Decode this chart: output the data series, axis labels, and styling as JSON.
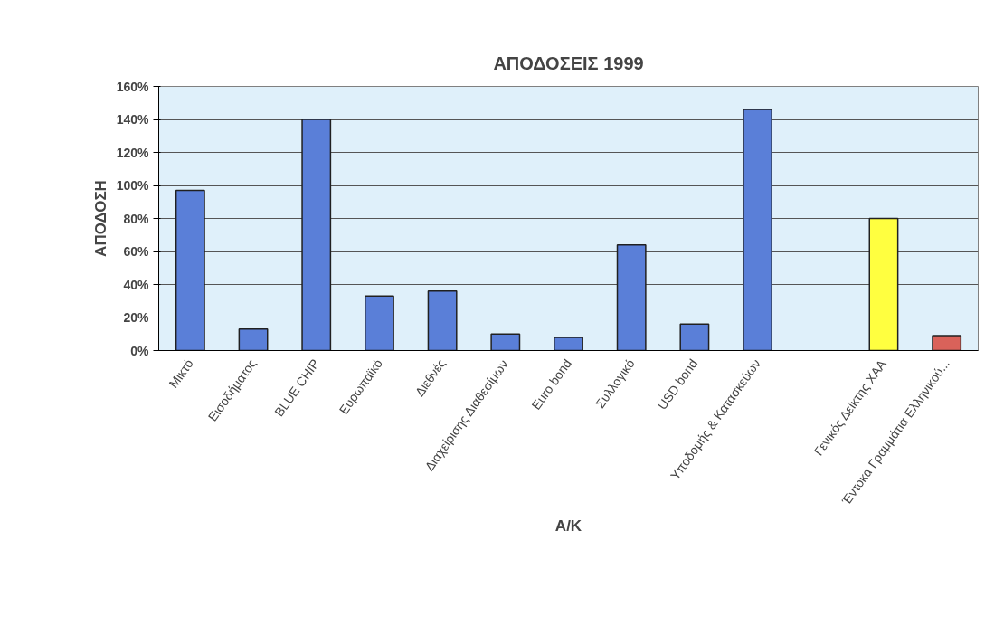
{
  "chart_data": {
    "type": "bar",
    "title": "ΑΠΟΔΟΣΕΙΣ 1999",
    "xlabel": "Α/Κ",
    "ylabel": "ΑΠΟΔΟΣΗ",
    "categories": [
      "Μικτό",
      "Εισοδήματος",
      "BLUE CHIP",
      "Ευρωπαϊκό",
      "Διεθνές",
      "Διαχείρισης Διαθεσίμων",
      "Euro bond",
      "Συλλογικό",
      "USD bond",
      "Υποδομής & Κατασκεύων",
      null,
      "Γενικός Δείκτης ΧΑΑ",
      "Έντοκα Γραμμάτια Ελληνικού..."
    ],
    "values": [
      97,
      13,
      140,
      33,
      36,
      10,
      8,
      64,
      16,
      146,
      null,
      80,
      9
    ],
    "colors": [
      "#5a7fd8",
      "#5a7fd8",
      "#5a7fd8",
      "#5a7fd8",
      "#5a7fd8",
      "#5a7fd8",
      "#5a7fd8",
      "#5a7fd8",
      "#5a7fd8",
      "#5a7fd8",
      "#5a7fd8",
      "#ffff40",
      "#d9625a"
    ],
    "ylim": [
      0,
      160
    ],
    "yticks": [
      {
        "value": 0,
        "label": "0%"
      },
      {
        "value": 20,
        "label": "20%"
      },
      {
        "value": 40,
        "label": "40%"
      },
      {
        "value": 60,
        "label": "60%"
      },
      {
        "value": 80,
        "label": "80%"
      },
      {
        "value": 100,
        "label": "100%"
      },
      {
        "value": 120,
        "label": "120%"
      },
      {
        "value": 140,
        "label": "140%"
      },
      {
        "value": 160,
        "label": "160%"
      }
    ],
    "grid": "y"
  }
}
